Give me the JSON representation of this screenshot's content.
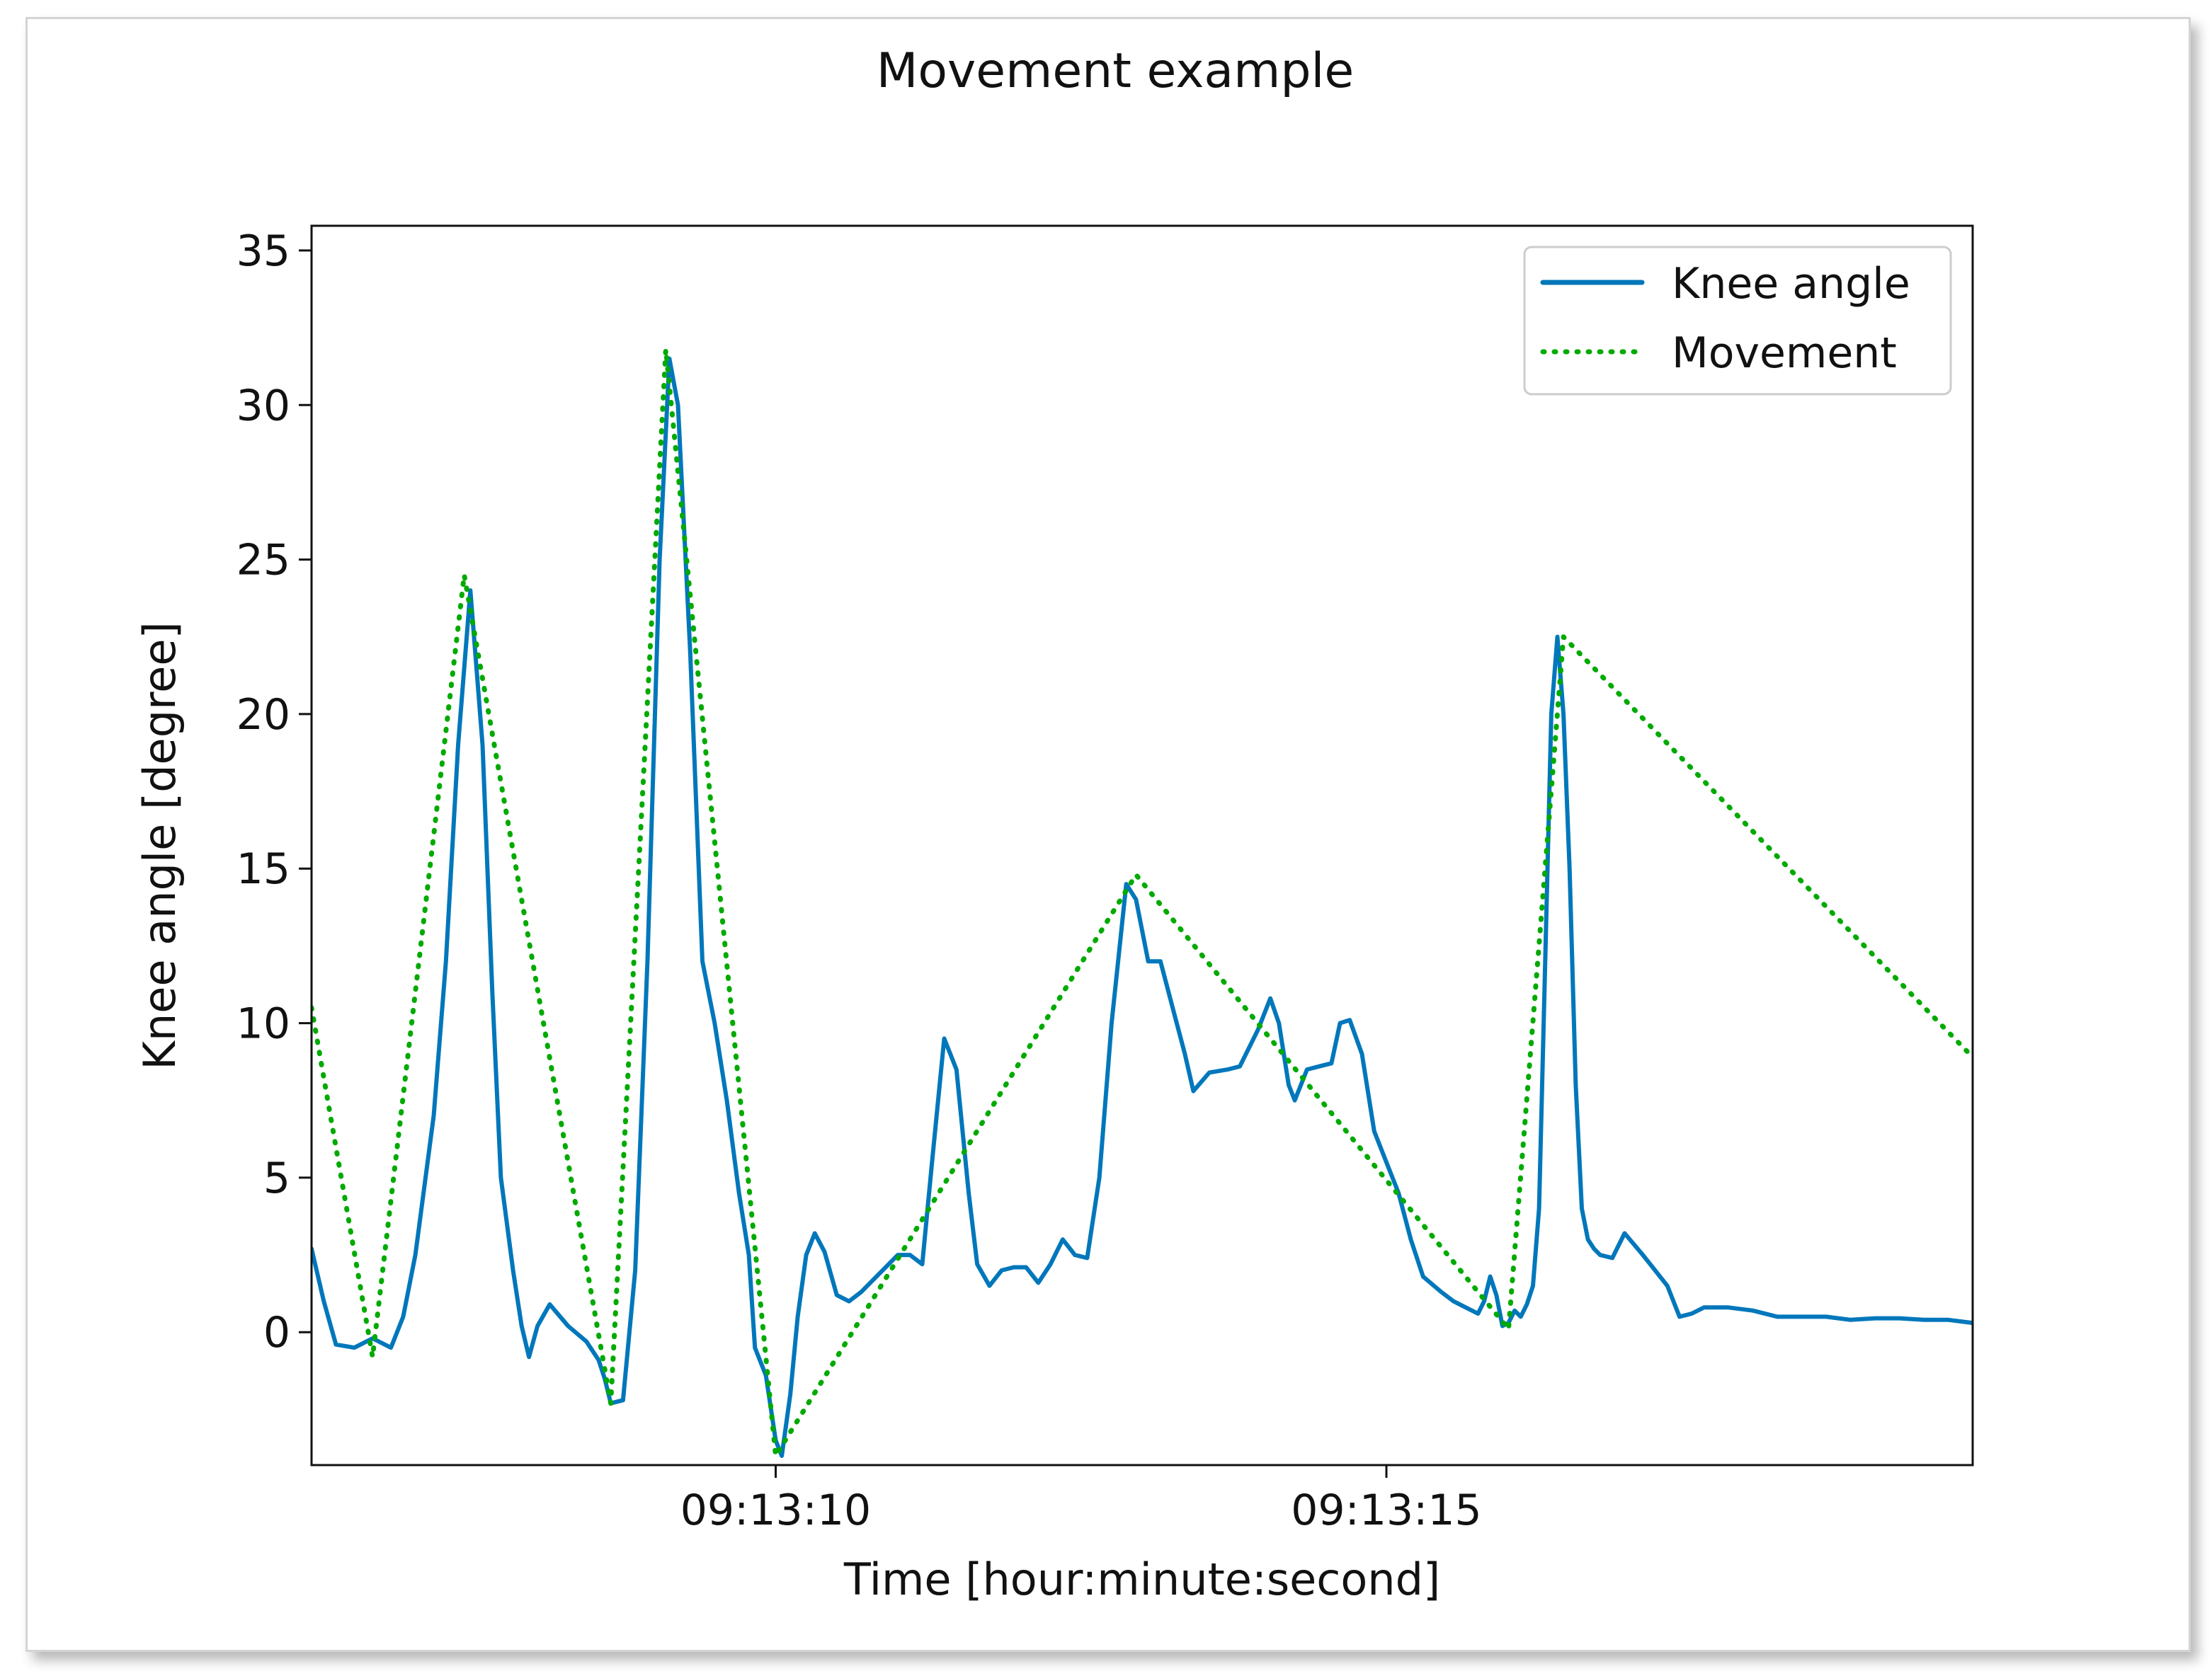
{
  "chart_data": {
    "type": "line",
    "title": "Movement example",
    "xlabel": "Time [hour:minute:second]",
    "ylabel": "Knee angle [degree]",
    "xlim": [
      "09:13:06.2",
      "09:13:19.8"
    ],
    "ylim": [
      -4.3,
      35.8
    ],
    "x_ticks": [
      {
        "t": "09:13:10",
        "label": "09:13:10"
      },
      {
        "t": "09:13:15",
        "label": "09:13:15"
      }
    ],
    "y_ticks": [
      0,
      5,
      10,
      15,
      20,
      25,
      30,
      35
    ],
    "y_tick_labels": [
      "0",
      "5",
      "10",
      "15",
      "20",
      "25",
      "30",
      "35"
    ],
    "grid": false,
    "legend_position": "top-right",
    "series": [
      {
        "name": "Knee angle",
        "color": "#0077bb",
        "style": "solid",
        "points": [
          [
            "09:13:06.20",
            2.7
          ],
          [
            "09:13:06.30",
            1.0
          ],
          [
            "09:13:06.40",
            -0.4
          ],
          [
            "09:13:06.55",
            -0.5
          ],
          [
            "09:13:06.70",
            -0.2
          ],
          [
            "09:13:06.85",
            -0.5
          ],
          [
            "09:13:06.95",
            0.5
          ],
          [
            "09:13:07.05",
            2.5
          ],
          [
            "09:13:07.20",
            7.0
          ],
          [
            "09:13:07.30",
            12.0
          ],
          [
            "09:13:07.40",
            19.0
          ],
          [
            "09:13:07.50",
            24.0
          ],
          [
            "09:13:07.60",
            19.0
          ],
          [
            "09:13:07.68",
            11.0
          ],
          [
            "09:13:07.75",
            5.0
          ],
          [
            "09:13:07.85",
            2.0
          ],
          [
            "09:13:07.92",
            0.2
          ],
          [
            "09:13:07.98",
            -0.8
          ],
          [
            "09:13:08.05",
            0.2
          ],
          [
            "09:13:08.15",
            0.9
          ],
          [
            "09:13:08.30",
            0.2
          ],
          [
            "09:13:08.45",
            -0.3
          ],
          [
            "09:13:08.55",
            -0.9
          ],
          [
            "09:13:08.60",
            -1.5
          ],
          [
            "09:13:08.65",
            -2.3
          ],
          [
            "09:13:08.75",
            -2.2
          ],
          [
            "09:13:08.85",
            2.0
          ],
          [
            "09:13:08.95",
            12.0
          ],
          [
            "09:13:09.05",
            25.0
          ],
          [
            "09:13:09.13",
            31.5
          ],
          [
            "09:13:09.20",
            30.0
          ],
          [
            "09:13:09.30",
            22.0
          ],
          [
            "09:13:09.40",
            12.0
          ],
          [
            "09:13:09.50",
            10.0
          ],
          [
            "09:13:09.60",
            7.5
          ],
          [
            "09:13:09.70",
            4.5
          ],
          [
            "09:13:09.78",
            2.5
          ],
          [
            "09:13:09.83",
            -0.5
          ],
          [
            "09:13:09.92",
            -1.4
          ],
          [
            "09:13:10.00",
            -3.5
          ],
          [
            "09:13:10.05",
            -4.0
          ],
          [
            "09:13:10.12",
            -2.0
          ],
          [
            "09:13:10.18",
            0.5
          ],
          [
            "09:13:10.25",
            2.5
          ],
          [
            "09:13:10.32",
            3.2
          ],
          [
            "09:13:10.40",
            2.6
          ],
          [
            "09:13:10.50",
            1.2
          ],
          [
            "09:13:10.60",
            1.0
          ],
          [
            "09:13:10.70",
            1.3
          ],
          [
            "09:13:10.80",
            1.7
          ],
          [
            "09:13:10.90",
            2.1
          ],
          [
            "09:13:11.00",
            2.5
          ],
          [
            "09:13:11.10",
            2.5
          ],
          [
            "09:13:11.20",
            2.2
          ],
          [
            "09:13:11.28",
            5.5
          ],
          [
            "09:13:11.38",
            9.5
          ],
          [
            "09:13:11.48",
            8.5
          ],
          [
            "09:13:11.58",
            4.5
          ],
          [
            "09:13:11.65",
            2.2
          ],
          [
            "09:13:11.75",
            1.5
          ],
          [
            "09:13:11.85",
            2.0
          ],
          [
            "09:13:11.95",
            2.1
          ],
          [
            "09:13:12.05",
            2.1
          ],
          [
            "09:13:12.15",
            1.6
          ],
          [
            "09:13:12.25",
            2.2
          ],
          [
            "09:13:12.35",
            3.0
          ],
          [
            "09:13:12.45",
            2.5
          ],
          [
            "09:13:12.55",
            2.4
          ],
          [
            "09:13:12.65",
            5.0
          ],
          [
            "09:13:12.75",
            10.0
          ],
          [
            "09:13:12.87",
            14.5
          ],
          [
            "09:13:12.95",
            14.0
          ],
          [
            "09:13:13.05",
            12.0
          ],
          [
            "09:13:13.15",
            12.0
          ],
          [
            "09:13:13.25",
            10.5
          ],
          [
            "09:13:13.35",
            9.0
          ],
          [
            "09:13:13.42",
            7.8
          ],
          [
            "09:13:13.55",
            8.4
          ],
          [
            "09:13:13.70",
            8.5
          ],
          [
            "09:13:13.80",
            8.6
          ],
          [
            "09:13:13.95",
            9.8
          ],
          [
            "09:13:14.05",
            10.8
          ],
          [
            "09:13:14.12",
            10.0
          ],
          [
            "09:13:14.20",
            8.0
          ],
          [
            "09:13:14.25",
            7.5
          ],
          [
            "09:13:14.35",
            8.5
          ],
          [
            "09:13:14.45",
            8.6
          ],
          [
            "09:13:14.55",
            8.7
          ],
          [
            "09:13:14.62",
            10.0
          ],
          [
            "09:13:14.70",
            10.1
          ],
          [
            "09:13:14.80",
            9.0
          ],
          [
            "09:13:14.90",
            6.5
          ],
          [
            "09:13:15.00",
            5.5
          ],
          [
            "09:13:15.10",
            4.5
          ],
          [
            "09:13:15.20",
            3.0
          ],
          [
            "09:13:15.30",
            1.8
          ],
          [
            "09:13:15.45",
            1.3
          ],
          [
            "09:13:15.55",
            1.0
          ],
          [
            "09:13:15.65",
            0.8
          ],
          [
            "09:13:15.75",
            0.6
          ],
          [
            "09:13:15.80",
            1.0
          ],
          [
            "09:13:15.85",
            1.8
          ],
          [
            "09:13:15.90",
            1.2
          ],
          [
            "09:13:15.95",
            0.2
          ],
          [
            "09:13:16.00",
            0.3
          ],
          [
            "09:13:16.05",
            0.7
          ],
          [
            "09:13:16.10",
            0.5
          ],
          [
            "09:13:16.15",
            0.9
          ],
          [
            "09:13:16.20",
            1.5
          ],
          [
            "09:13:16.25",
            4.0
          ],
          [
            "09:13:16.30",
            12.0
          ],
          [
            "09:13:16.35",
            20.0
          ],
          [
            "09:13:16.40",
            22.5
          ],
          [
            "09:13:16.45",
            20.0
          ],
          [
            "09:13:16.50",
            15.0
          ],
          [
            "09:13:16.55",
            8.0
          ],
          [
            "09:13:16.60",
            4.0
          ],
          [
            "09:13:16.65",
            3.0
          ],
          [
            "09:13:16.70",
            2.7
          ],
          [
            "09:13:16.75",
            2.5
          ],
          [
            "09:13:16.85",
            2.4
          ],
          [
            "09:13:16.95",
            3.2
          ],
          [
            "09:13:17.10",
            2.5
          ],
          [
            "09:13:17.20",
            2.0
          ],
          [
            "09:13:17.30",
            1.5
          ],
          [
            "09:13:17.40",
            0.5
          ],
          [
            "09:13:17.50",
            0.6
          ],
          [
            "09:13:17.60",
            0.8
          ],
          [
            "09:13:17.80",
            0.8
          ],
          [
            "09:13:18.00",
            0.7
          ],
          [
            "09:13:18.20",
            0.5
          ],
          [
            "09:13:18.40",
            0.5
          ],
          [
            "09:13:18.60",
            0.5
          ],
          [
            "09:13:18.80",
            0.4
          ],
          [
            "09:13:19.00",
            0.45
          ],
          [
            "09:13:19.20",
            0.45
          ],
          [
            "09:13:19.40",
            0.4
          ],
          [
            "09:13:19.60",
            0.4
          ],
          [
            "09:13:19.80",
            0.3
          ]
        ]
      },
      {
        "name": "Movement",
        "color": "#00aa00",
        "style": "dotted",
        "points": [
          [
            "09:13:06.20",
            10.5
          ],
          [
            "09:13:06.70",
            -0.8
          ],
          [
            "09:13:07.45",
            24.5
          ],
          [
            "09:13:08.65",
            -2.3
          ],
          [
            "09:13:09.10",
            31.8
          ],
          [
            "09:13:10.00",
            -4.0
          ],
          [
            "09:13:12.95",
            14.8
          ],
          [
            "09:13:16.00",
            0.1
          ],
          [
            "09:13:16.45",
            22.5
          ],
          [
            "09:13:19.80",
            8.9
          ]
        ]
      }
    ]
  }
}
